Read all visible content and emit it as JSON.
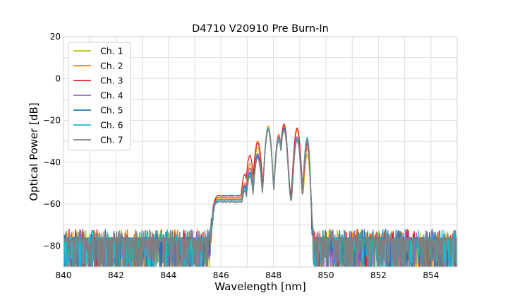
{
  "chart_data": {
    "type": "line",
    "title": "D4710 V20910 Pre Burn-In",
    "xlabel": "Wavelength [nm]",
    "ylabel": "Optical Power [dB]",
    "xlim": [
      840,
      855
    ],
    "ylim": [
      -90,
      20
    ],
    "xticks": [
      840,
      842,
      844,
      846,
      848,
      850,
      852,
      854
    ],
    "xtick_labels": [
      "840",
      "842",
      "844",
      "846",
      "848",
      "850",
      "852",
      "854"
    ],
    "yticks": [
      20,
      0,
      -20,
      -40,
      -60,
      -80
    ],
    "ytick_labels": [
      "20",
      "0",
      "−20",
      "−40",
      "−60",
      "−80"
    ],
    "grid": true,
    "legend_position": "top-left",
    "noise_floor": -77,
    "series": [
      {
        "name": "Ch. 1",
        "color": "#bcbd22",
        "peaks": [
          [
            845.9,
            -70
          ],
          [
            846.5,
            -62
          ],
          [
            846.9,
            -52
          ],
          [
            847.1,
            -43
          ],
          [
            847.4,
            -33
          ],
          [
            847.8,
            -23
          ],
          [
            848.2,
            -27
          ],
          [
            848.4,
            -24
          ],
          [
            848.9,
            -24
          ],
          [
            849.3,
            -36
          ]
        ]
      },
      {
        "name": "Ch. 2",
        "color": "#ff7f0e",
        "peaks": [
          [
            845.9,
            -69
          ],
          [
            846.5,
            -61
          ],
          [
            846.9,
            -50
          ],
          [
            847.1,
            -41
          ],
          [
            847.4,
            -30
          ],
          [
            847.8,
            -23
          ],
          [
            848.2,
            -27
          ],
          [
            848.4,
            -23
          ],
          [
            848.9,
            -25
          ],
          [
            849.3,
            -33
          ]
        ]
      },
      {
        "name": "Ch. 3",
        "color": "#d62728",
        "peaks": [
          [
            845.9,
            -68
          ],
          [
            846.5,
            -60
          ],
          [
            846.9,
            -46
          ],
          [
            847.1,
            -37
          ],
          [
            847.4,
            -31
          ],
          [
            847.8,
            -24
          ],
          [
            848.2,
            -28
          ],
          [
            848.4,
            -22
          ],
          [
            848.9,
            -24
          ],
          [
            849.3,
            -31
          ]
        ]
      },
      {
        "name": "Ch. 4",
        "color": "#9467bd",
        "peaks": [
          [
            845.9,
            -70
          ],
          [
            846.5,
            -62
          ],
          [
            846.9,
            -51
          ],
          [
            847.1,
            -43
          ],
          [
            847.4,
            -36
          ],
          [
            847.8,
            -24
          ],
          [
            848.2,
            -28
          ],
          [
            848.4,
            -24
          ],
          [
            848.9,
            -28
          ],
          [
            849.3,
            -30
          ]
        ]
      },
      {
        "name": "Ch. 5",
        "color": "#1f77b4",
        "peaks": [
          [
            845.9,
            -69
          ],
          [
            846.5,
            -62
          ],
          [
            846.9,
            -52
          ],
          [
            847.1,
            -45
          ],
          [
            847.4,
            -37
          ],
          [
            847.8,
            -24
          ],
          [
            848.2,
            -29
          ],
          [
            848.4,
            -24
          ],
          [
            848.9,
            -29
          ],
          [
            849.3,
            -28
          ]
        ]
      },
      {
        "name": "Ch. 6",
        "color": "#17becf",
        "peaks": [
          [
            845.9,
            -70
          ],
          [
            846.5,
            -62
          ],
          [
            846.9,
            -53
          ],
          [
            847.1,
            -46
          ],
          [
            847.4,
            -38
          ],
          [
            847.8,
            -24
          ],
          [
            848.2,
            -29
          ],
          [
            848.4,
            -25
          ],
          [
            848.9,
            -29
          ],
          [
            849.3,
            -28
          ]
        ]
      },
      {
        "name": "Ch. 7",
        "color": "#7f7f7f",
        "peaks": [
          [
            845.9,
            -70
          ],
          [
            846.5,
            -62
          ],
          [
            846.9,
            -54
          ],
          [
            847.1,
            -47
          ],
          [
            847.4,
            -38
          ],
          [
            847.8,
            -25
          ],
          [
            848.2,
            -30
          ],
          [
            848.4,
            -25
          ],
          [
            848.9,
            -30
          ],
          [
            849.3,
            -29
          ]
        ]
      }
    ]
  }
}
